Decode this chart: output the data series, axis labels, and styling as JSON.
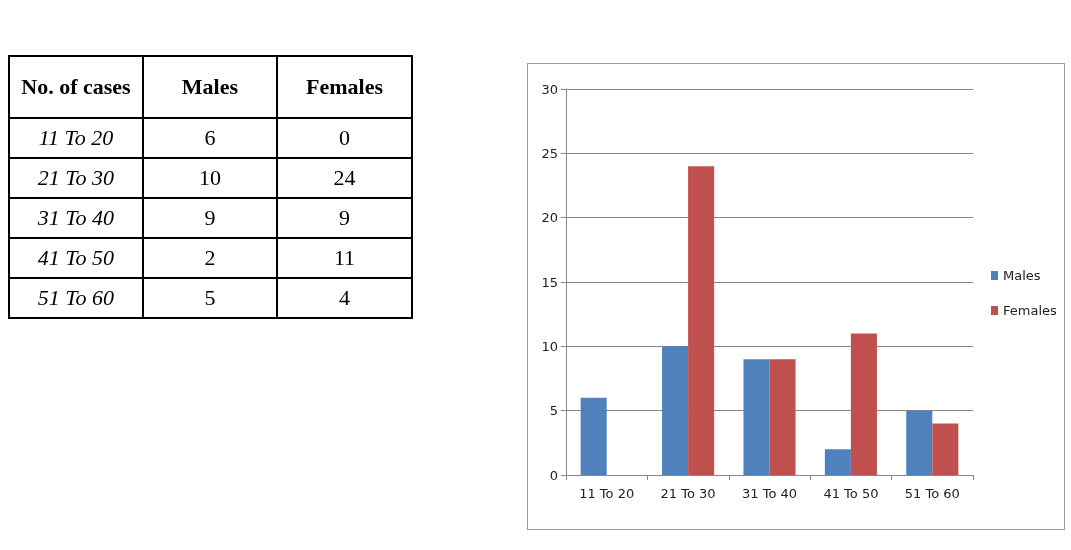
{
  "chart_data": [
    {
      "type": "other",
      "xlabel": "No. of cases",
      "categories": [
        "11 To 20",
        "21 To 30",
        "31 To 40",
        "41 To 50",
        "51 To 60"
      ],
      "series": [
        {
          "name": "Males",
          "values": [
            6,
            10,
            9,
            2,
            5
          ]
        },
        {
          "name": "Females",
          "values": [
            0,
            24,
            9,
            11,
            4
          ]
        }
      ],
      "data_labels": true
    },
    {
      "type": "bar",
      "categories": [
        "11 To 20",
        "21 To 30",
        "31 To 40",
        "41 To 50",
        "51 To 60"
      ],
      "series": [
        {
          "name": "Males",
          "color": "#4f81bd",
          "values": [
            6,
            10,
            9,
            2,
            5
          ]
        },
        {
          "name": "Females",
          "color": "#c0504d",
          "values": [
            0,
            24,
            9,
            11,
            4
          ]
        }
      ],
      "ylim": [
        0,
        30
      ],
      "yticks": [
        0,
        5,
        10,
        15,
        20,
        25,
        30
      ],
      "grid": "y",
      "legend": "right"
    }
  ]
}
